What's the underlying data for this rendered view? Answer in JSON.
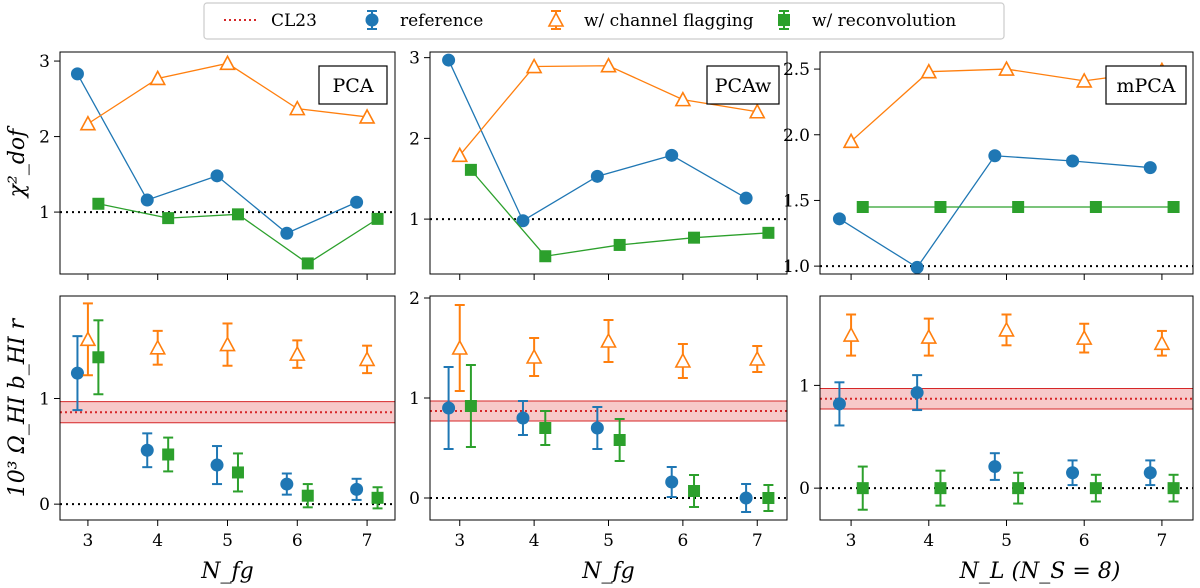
{
  "legend": {
    "items": [
      {
        "label": "CL23",
        "kind": "dotted-line",
        "color": "#d62728"
      },
      {
        "label": "reference",
        "kind": "circle-errorbar",
        "color": "#1f77b4"
      },
      {
        "label": "w/ channel flagging",
        "kind": "open-triangle-errorbar",
        "color": "#ff7f0e"
      },
      {
        "label": "w/ reconvolution",
        "kind": "square-errorbar",
        "color": "#2ca02c"
      }
    ],
    "placement": "top-center"
  },
  "colors": {
    "reference": "#1f77b4",
    "flagging": "#ff7f0e",
    "reconvolution": "#2ca02c",
    "cl23": "#d62728",
    "cl23_band": "#f7c9c9"
  },
  "chart_data": [
    {
      "id": "pca-chi2",
      "type": "line",
      "panel_label": "PCA",
      "ylabel": "χ²_dof",
      "xlabel": "",
      "xlim": [
        2.6,
        7.4
      ],
      "ylim": [
        0.18,
        3.12
      ],
      "xticks": [
        3,
        4,
        5,
        6,
        7
      ],
      "yticks": [
        1,
        2,
        3
      ],
      "reference_line": {
        "y": 1,
        "style": "dotted"
      },
      "series": [
        {
          "key": "reference",
          "x": [
            2.85,
            3.85,
            4.85,
            5.85,
            6.85
          ],
          "y": [
            2.83,
            1.16,
            1.48,
            0.72,
            1.13
          ]
        },
        {
          "key": "flagging",
          "x": [
            3.0,
            4.0,
            5.0,
            6.0,
            7.0
          ],
          "y": [
            2.17,
            2.77,
            2.97,
            2.37,
            2.26
          ]
        },
        {
          "key": "reconvolution",
          "x": [
            3.15,
            4.15,
            5.15,
            6.15,
            7.15
          ],
          "y": [
            1.11,
            0.92,
            0.97,
            0.32,
            0.91
          ]
        }
      ]
    },
    {
      "id": "pcaw-chi2",
      "type": "line",
      "panel_label": "PCAw",
      "ylabel": "",
      "xlabel": "",
      "xlim": [
        2.6,
        7.4
      ],
      "ylim": [
        0.32,
        3.07
      ],
      "xticks": [
        3,
        4,
        5,
        6,
        7
      ],
      "yticks": [
        1,
        2,
        3
      ],
      "reference_line": {
        "y": 1,
        "style": "dotted"
      },
      "series": [
        {
          "key": "reference",
          "x": [
            2.85,
            3.85,
            4.85,
            5.85,
            6.85
          ],
          "y": [
            2.97,
            0.98,
            1.53,
            1.79,
            1.26
          ]
        },
        {
          "key": "flagging",
          "x": [
            3.0,
            4.0,
            5.0,
            6.0,
            7.0
          ],
          "y": [
            1.79,
            2.89,
            2.9,
            2.48,
            2.33
          ]
        },
        {
          "key": "reconvolution",
          "x": [
            3.15,
            4.15,
            5.15,
            6.15,
            7.15
          ],
          "y": [
            1.61,
            0.54,
            0.68,
            0.77,
            0.83
          ]
        }
      ]
    },
    {
      "id": "mpca-chi2",
      "type": "line",
      "panel_label": "mPCA",
      "ylabel": "",
      "xlabel": "",
      "xlim": [
        2.6,
        7.4
      ],
      "ylim": [
        0.94,
        2.63
      ],
      "xticks": [
        3,
        4,
        5,
        6,
        7
      ],
      "yticks": [
        1.0,
        1.5,
        2.0,
        2.5
      ],
      "ytick_labels": [
        "1.0",
        "1.5",
        "2.0",
        "2.5"
      ],
      "reference_line": {
        "y": 1,
        "style": "dotted"
      },
      "series": [
        {
          "key": "reference",
          "x": [
            2.85,
            3.85,
            4.85,
            5.85,
            6.85
          ],
          "y": [
            1.36,
            0.99,
            1.84,
            1.8,
            1.75
          ]
        },
        {
          "key": "flagging",
          "x": [
            3.0,
            4.0,
            5.0,
            6.0,
            7.0
          ],
          "y": [
            1.95,
            2.48,
            2.5,
            2.41,
            2.49
          ]
        },
        {
          "key": "reconvolution",
          "x": [
            3.15,
            4.15,
            5.15,
            6.15,
            7.15
          ],
          "y": [
            1.45,
            1.45,
            1.45,
            1.45,
            1.45
          ]
        }
      ]
    },
    {
      "id": "pca-omega",
      "type": "scatter",
      "ylabel": "10³ Ω_HI b_HI r",
      "xlabel": "N_fg",
      "xlim": [
        2.6,
        7.4
      ],
      "ylim": [
        -0.15,
        1.97
      ],
      "xticks": [
        3,
        4,
        5,
        6,
        7
      ],
      "yticks": [
        0,
        1
      ],
      "reference_line": {
        "y": 0,
        "style": "dotted"
      },
      "cl23": {
        "value": 0.87,
        "low": 0.77,
        "high": 0.97
      },
      "series": [
        {
          "key": "reference",
          "x": [
            2.85,
            3.85,
            4.85,
            5.85,
            6.85
          ],
          "y": [
            1.24,
            0.51,
            0.37,
            0.19,
            0.14
          ],
          "err": [
            0.35,
            0.16,
            0.18,
            0.1,
            0.1
          ]
        },
        {
          "key": "flagging",
          "x": [
            3.0,
            4.0,
            5.0,
            6.0,
            7.0
          ],
          "y": [
            1.56,
            1.48,
            1.51,
            1.42,
            1.37
          ],
          "err": [
            0.34,
            0.16,
            0.2,
            0.13,
            0.13
          ]
        },
        {
          "key": "reconvolution",
          "x": [
            3.15,
            4.15,
            5.15,
            6.15,
            7.15
          ],
          "y": [
            1.39,
            0.47,
            0.3,
            0.08,
            0.06
          ],
          "err": [
            0.35,
            0.16,
            0.18,
            0.11,
            0.1
          ]
        }
      ]
    },
    {
      "id": "pcaw-omega",
      "type": "scatter",
      "ylabel": "",
      "xlabel": "N_fg",
      "xlim": [
        2.6,
        7.4
      ],
      "ylim": [
        -0.22,
        2.02
      ],
      "xticks": [
        3,
        4,
        5,
        6,
        7
      ],
      "yticks": [
        0,
        1,
        2
      ],
      "reference_line": {
        "y": 0,
        "style": "dotted"
      },
      "cl23": {
        "value": 0.87,
        "low": 0.77,
        "high": 0.97
      },
      "series": [
        {
          "key": "reference",
          "x": [
            2.85,
            3.85,
            4.85,
            5.85,
            6.85
          ],
          "y": [
            0.9,
            0.8,
            0.7,
            0.16,
            0.0
          ],
          "err": [
            0.41,
            0.17,
            0.21,
            0.15,
            0.14
          ]
        },
        {
          "key": "flagging",
          "x": [
            3.0,
            4.0,
            5.0,
            6.0,
            7.0
          ],
          "y": [
            1.5,
            1.41,
            1.57,
            1.37,
            1.39
          ],
          "err": [
            0.43,
            0.19,
            0.21,
            0.17,
            0.13
          ]
        },
        {
          "key": "reconvolution",
          "x": [
            3.15,
            4.15,
            5.15,
            6.15,
            7.15
          ],
          "y": [
            0.92,
            0.7,
            0.58,
            0.07,
            0.0
          ],
          "err": [
            0.41,
            0.17,
            0.21,
            0.16,
            0.13
          ]
        }
      ]
    },
    {
      "id": "mpca-omega",
      "type": "scatter",
      "ylabel": "",
      "xlabel": "N_L (N_S = 8)",
      "xlim": [
        2.6,
        7.4
      ],
      "ylim": [
        -0.31,
        1.87
      ],
      "xticks": [
        3,
        4,
        5,
        6,
        7
      ],
      "yticks": [
        0,
        1
      ],
      "reference_line": {
        "y": 0,
        "style": "dotted"
      },
      "cl23": {
        "value": 0.87,
        "low": 0.77,
        "high": 0.97
      },
      "series": [
        {
          "key": "reference",
          "x": [
            2.85,
            3.85,
            4.85,
            5.85,
            6.85
          ],
          "y": [
            0.82,
            0.93,
            0.21,
            0.15,
            0.15
          ],
          "err": [
            0.21,
            0.17,
            0.13,
            0.12,
            0.12
          ]
        },
        {
          "key": "flagging",
          "x": [
            3.0,
            4.0,
            5.0,
            6.0,
            7.0
          ],
          "y": [
            1.49,
            1.47,
            1.54,
            1.46,
            1.41
          ],
          "err": [
            0.2,
            0.18,
            0.15,
            0.14,
            0.12
          ]
        },
        {
          "key": "reconvolution",
          "x": [
            3.15,
            4.15,
            5.15,
            6.15,
            7.15
          ],
          "y": [
            0.0,
            0.0,
            0.0,
            0.0,
            0.0
          ],
          "err": [
            0.21,
            0.17,
            0.15,
            0.13,
            0.13
          ]
        }
      ]
    }
  ]
}
